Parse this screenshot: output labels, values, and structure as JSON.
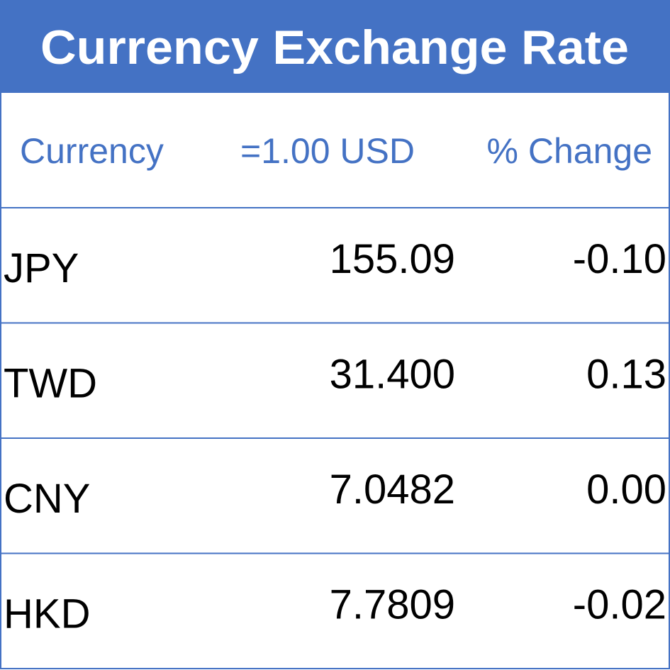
{
  "header": {
    "title": "Currency Exchange Rate"
  },
  "table": {
    "columns": [
      "Currency",
      "=1.00 USD",
      "% Change"
    ],
    "rows": [
      [
        "JPY",
        "155.09",
        "-0.10"
      ],
      [
        "TWD",
        "31.400",
        "0.13"
      ],
      [
        "CNY",
        "7.0482",
        "0.00"
      ],
      [
        "HKD",
        "7.7809",
        "-0.02"
      ]
    ]
  }
}
